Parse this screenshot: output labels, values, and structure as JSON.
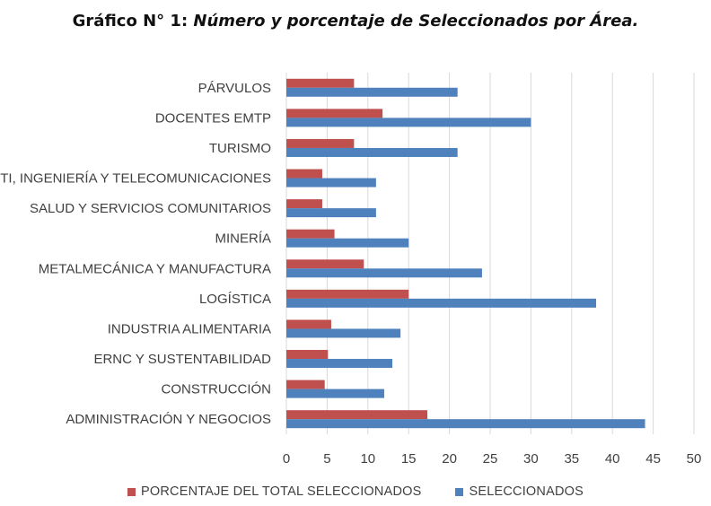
{
  "title": {
    "prefix": "Gráfico N° 1: ",
    "main": "Número y porcentaje de Seleccionados por Área."
  },
  "colors": {
    "porcentaje": "#c0504d",
    "seleccionados": "#4f81bd",
    "grid": "#d9d9d9",
    "text": "#404040"
  },
  "chart_data": {
    "type": "bar",
    "orientation": "horizontal",
    "title": "Gráfico N° 1: Número y porcentaje de Seleccionados por Área.",
    "categories": [
      "PÁRVULOS",
      "DOCENTES EMTP",
      "TURISMO",
      "TI, INGENIERÍA Y TELECOMUNICACIONES",
      "SALUD Y SERVICIOS COMUNITARIOS",
      "MINERÍA",
      "METALMECÁNICA Y MANUFACTURA",
      "LOGÍSTICA",
      "INDUSTRIA ALIMENTARIA",
      "ERNC Y SUSTENTABILIDAD",
      "CONSTRUCCIÓN",
      "ADMINISTRACIÓN Y NEGOCIOS"
    ],
    "series": [
      {
        "name": "PORCENTAJE DEL TOTAL SELECCIONADOS",
        "color": "#c0504d",
        "values": [
          8.3,
          11.8,
          8.3,
          4.4,
          4.4,
          5.9,
          9.5,
          15.0,
          5.5,
          5.1,
          4.7,
          17.3
        ]
      },
      {
        "name": "SELECCIONADOS",
        "color": "#4f81bd",
        "values": [
          21,
          30,
          21,
          11,
          11,
          15,
          24,
          38,
          14,
          13,
          12,
          44
        ]
      }
    ],
    "xlim": [
      0,
      50
    ],
    "xticks": [
      0,
      5,
      10,
      15,
      20,
      25,
      30,
      35,
      40,
      45,
      50
    ],
    "grid": true,
    "legend_position": "bottom"
  }
}
